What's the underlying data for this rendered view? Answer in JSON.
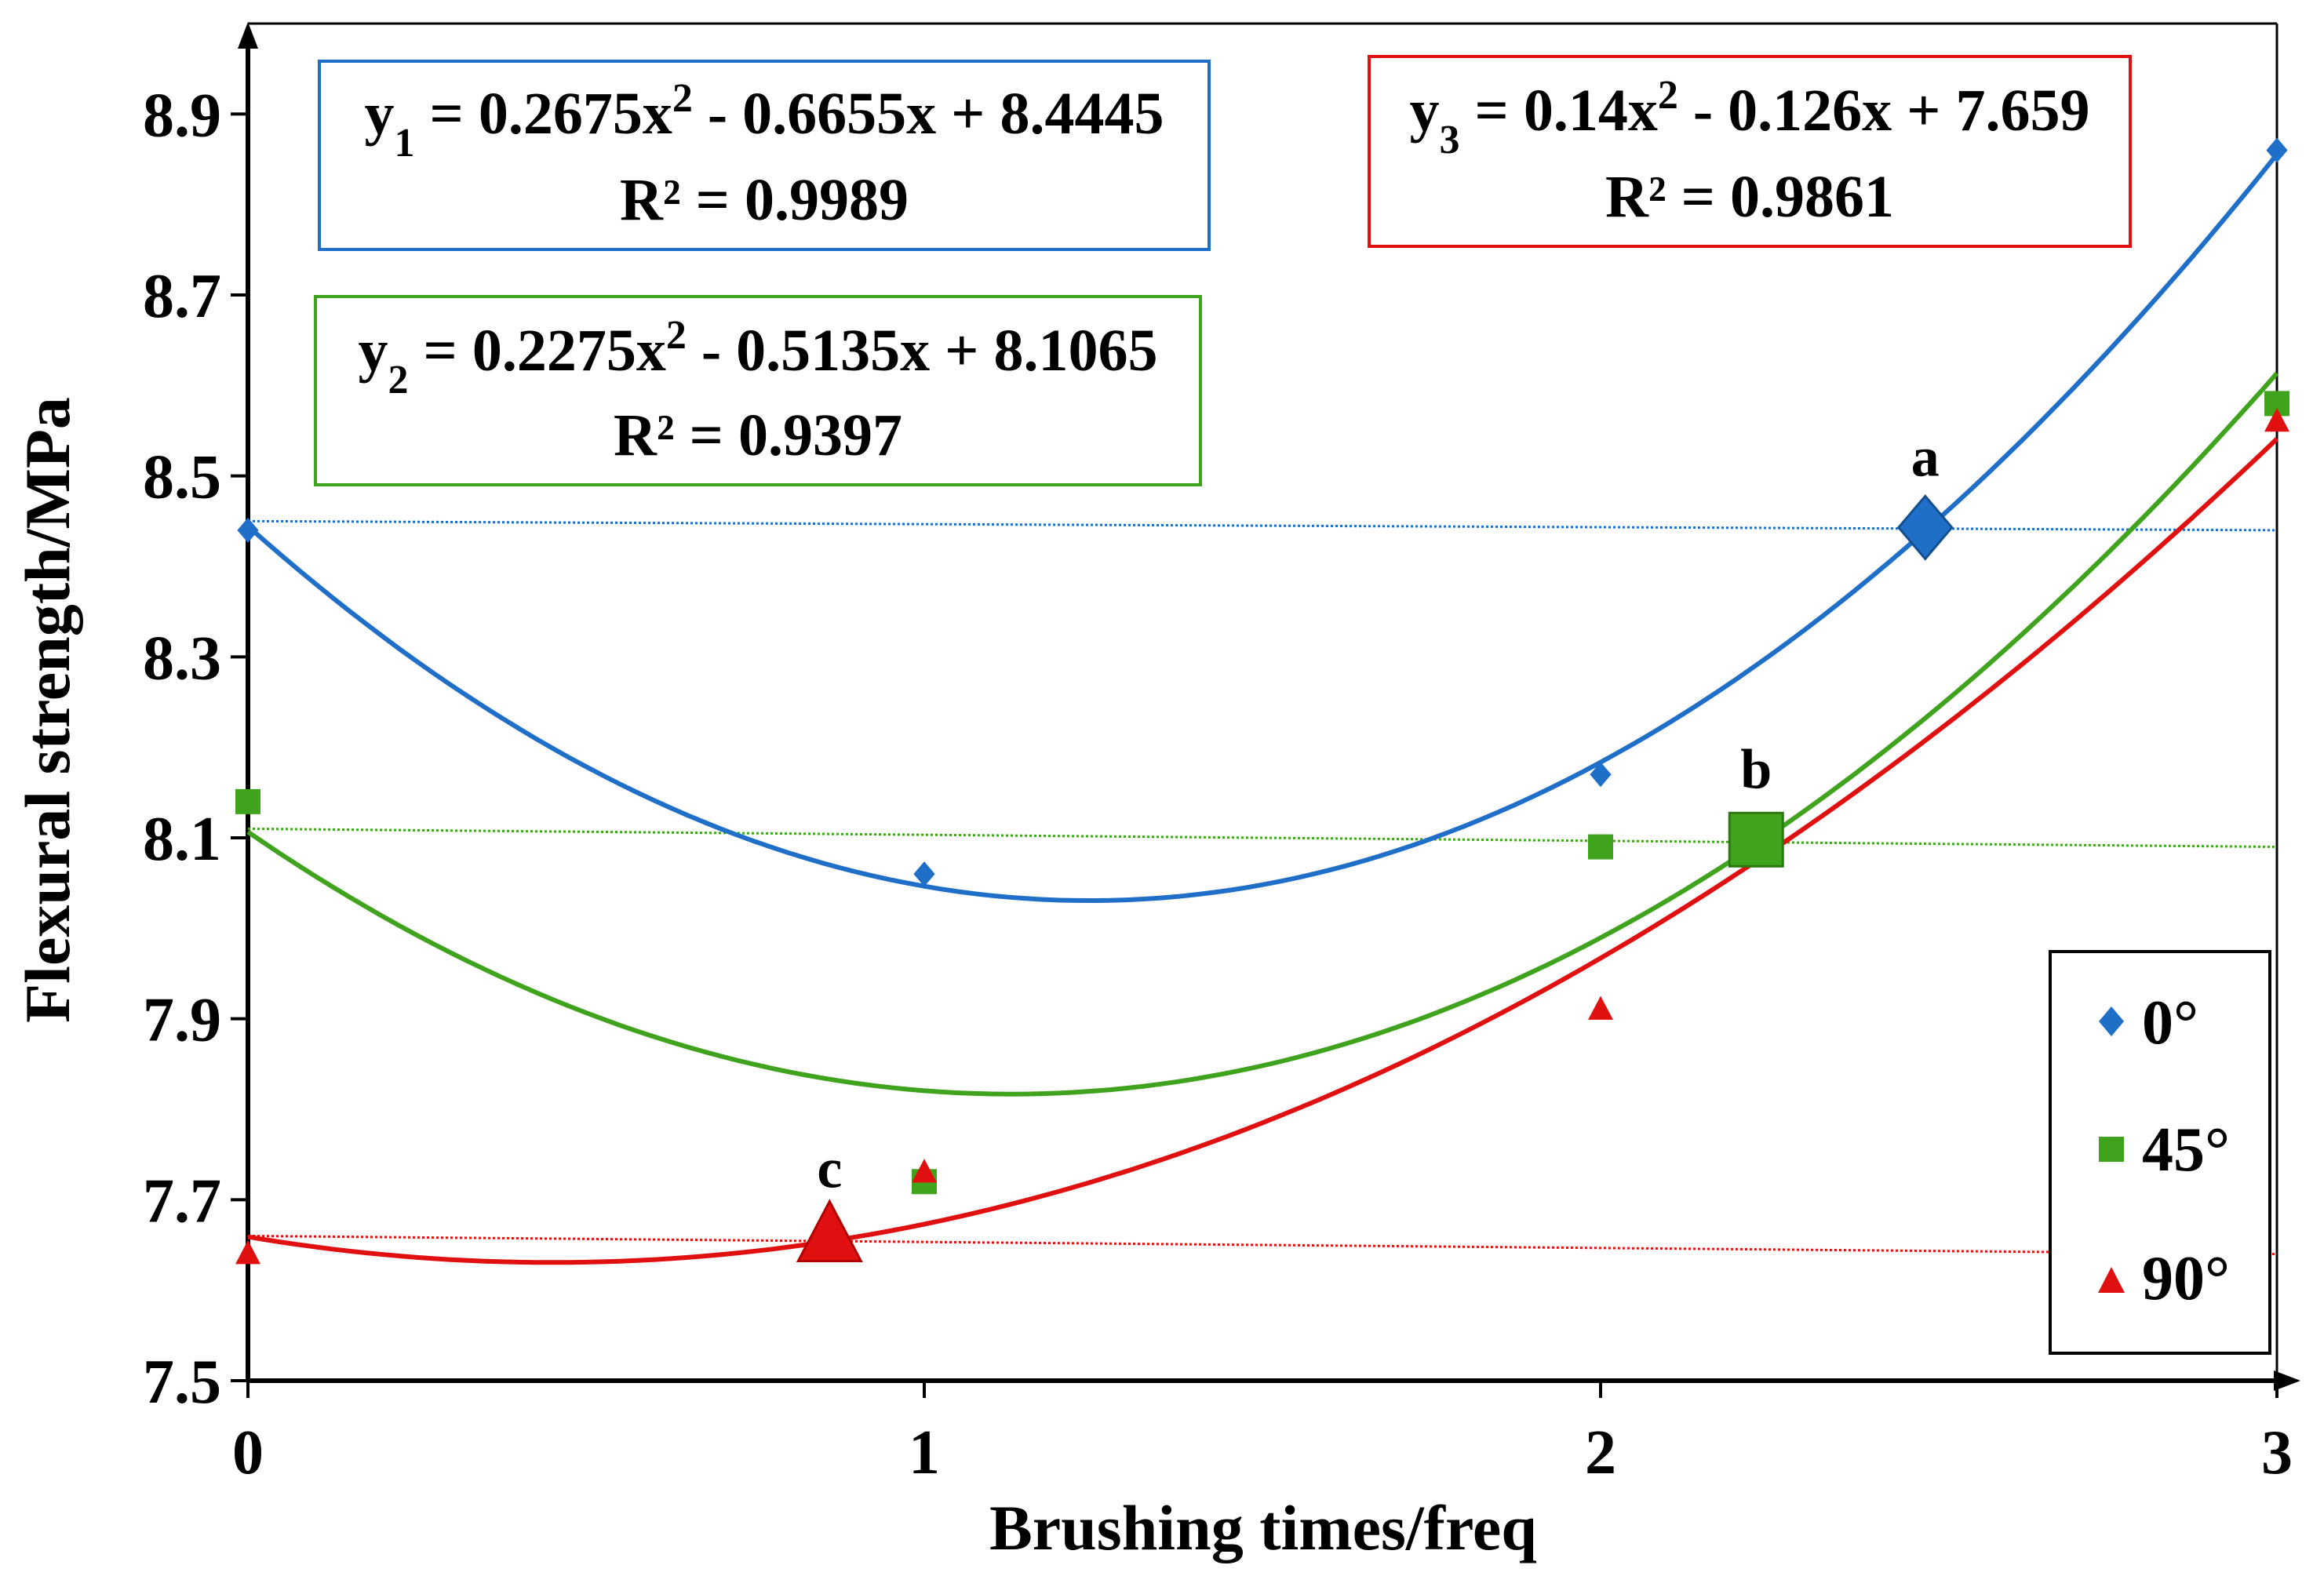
{
  "chart_data": {
    "type": "scatter",
    "title": "",
    "xlabel": "Brushing times/freq",
    "ylabel": "Flexural strength/MPa",
    "xlim": [
      0,
      3
    ],
    "ylim": [
      7.5,
      9.0
    ],
    "x_ticks": [
      0,
      1,
      2,
      3
    ],
    "x_tick_labels": [
      "0",
      "1",
      "2",
      "3"
    ],
    "y_ticks": [
      7.5,
      7.7,
      7.9,
      8.1,
      8.3,
      8.5,
      8.7,
      8.9
    ],
    "y_tick_labels": [
      "7.5",
      "7.7",
      "7.9",
      "8.1",
      "8.3",
      "8.5",
      "8.7",
      "8.9"
    ],
    "legend_position": "bottom-right",
    "series": [
      {
        "name": "0°",
        "key": "s0",
        "marker": "diamond",
        "color": "#1f6fc8",
        "x": [
          0,
          1,
          2,
          3
        ],
        "y": [
          8.44,
          8.06,
          8.17,
          8.86
        ],
        "fit": {
          "a": 0.2675,
          "b": -0.6655,
          "c": 8.4445
        },
        "reference_line": {
          "y_start": 8.45,
          "y_end": 8.44
        },
        "equation": {
          "lhs": "y",
          "sub": "1",
          "rhs_pre": " = 0.2675x",
          "sup": "2",
          "rhs_post": " - 0.6655x + 8.4445",
          "r2": "R² = 0.9989"
        },
        "highlight": {
          "label": "a",
          "x": 2.48,
          "y": 8.443
        }
      },
      {
        "name": "45°",
        "key": "s45",
        "marker": "square",
        "color": "#3fa31e",
        "x": [
          0,
          1,
          2,
          3
        ],
        "y": [
          8.14,
          7.72,
          8.09,
          8.58
        ],
        "fit": {
          "a": 0.2275,
          "b": -0.5135,
          "c": 8.1065
        },
        "reference_line": {
          "y_start": 8.11,
          "y_end": 8.09
        },
        "equation": {
          "lhs": "y",
          "sub": "2",
          "rhs_pre": " = 0.2275x",
          "sup": "2",
          "rhs_post": " - 0.5135x + 8.1065",
          "r2": "R² = 0.9397"
        },
        "highlight": {
          "label": "b",
          "x": 2.23,
          "y": 8.098
        }
      },
      {
        "name": "90°",
        "key": "s90",
        "marker": "triangle",
        "color": "#e01010",
        "x": [
          0,
          1,
          2,
          3
        ],
        "y": [
          7.64,
          7.73,
          7.91,
          8.56
        ],
        "fit": {
          "a": 0.14,
          "b": -0.126,
          "c": 7.659
        },
        "reference_line": {
          "y_start": 7.66,
          "y_end": 7.64
        },
        "equation": {
          "lhs": "y",
          "sub": "3",
          "rhs_pre": " = 0.14x",
          "sup": "2",
          "rhs_post": " - 0.126x + 7.659",
          "r2": "R² = 0.9861"
        },
        "highlight": {
          "label": "c",
          "x": 0.86,
          "y": 7.66
        }
      }
    ]
  }
}
